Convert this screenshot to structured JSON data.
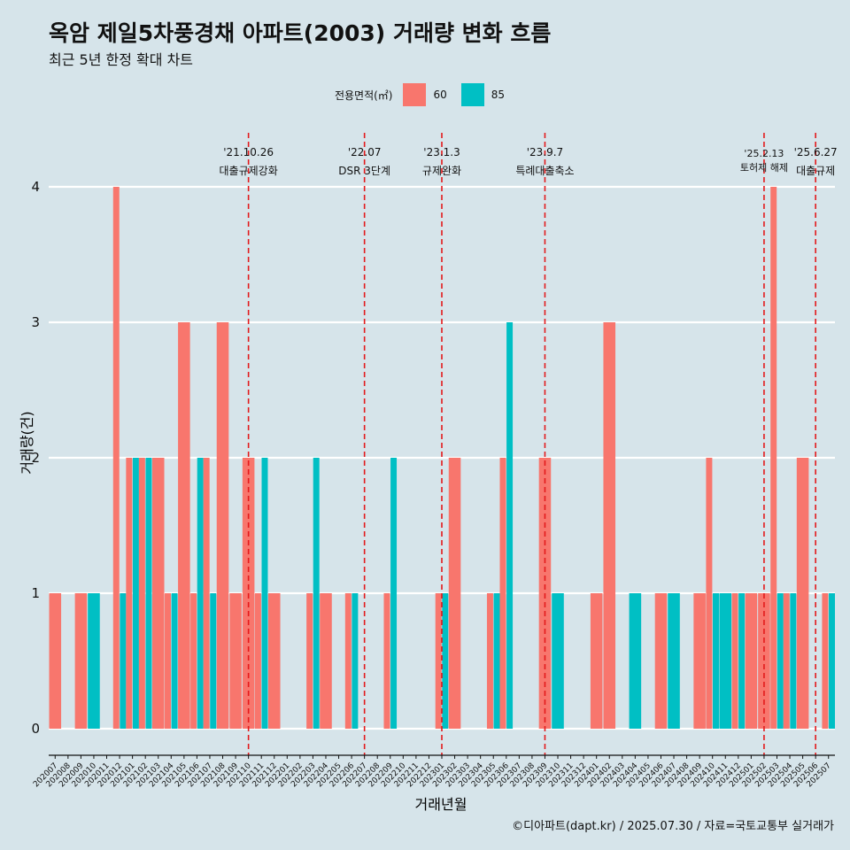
{
  "title": "옥암 제일5차풍경채 아파트(2003) 거래량 변화 흐름",
  "subtitle": "최근 5년 한정 확대 차트",
  "legend": {
    "title": "전용면적(㎡)"
  },
  "caption": "©디아파트(dapt.kr) / 2025.07.30 / 자료=국토교통부 실거래가",
  "colors": {
    "60": "#f8766d",
    "85": "#00bfc4",
    "background": "#d6e4ea",
    "vline": "#e31a1c"
  },
  "chart_data": {
    "type": "bar",
    "xlabel": "거래년월",
    "ylabel": "거래량(건)",
    "ylim": [
      0,
      4
    ],
    "yticks": [
      0,
      1,
      2,
      3,
      4
    ],
    "grid": true,
    "legend_position": "top",
    "categories": [
      "202007",
      "202008",
      "202009",
      "202010",
      "202011",
      "202012",
      "202101",
      "202102",
      "202103",
      "202104",
      "202105",
      "202106",
      "202107",
      "202108",
      "202109",
      "202110",
      "202111",
      "202112",
      "202201",
      "202202",
      "202203",
      "202204",
      "202205",
      "202206",
      "202207",
      "202208",
      "202209",
      "202210",
      "202211",
      "202212",
      "202301",
      "202302",
      "202303",
      "202304",
      "202305",
      "202306",
      "202307",
      "202308",
      "202309",
      "202310",
      "202311",
      "202312",
      "202401",
      "202402",
      "202403",
      "202404",
      "202405",
      "202406",
      "202407",
      "202408",
      "202409",
      "202410",
      "202411",
      "202412",
      "202501",
      "202502",
      "202503",
      "202504",
      "202505",
      "202506",
      "202507"
    ],
    "series": [
      {
        "name": "60",
        "values": [
          1,
          0,
          1,
          0,
          0,
          4,
          2,
          2,
          2,
          1,
          3,
          1,
          2,
          3,
          1,
          2,
          1,
          1,
          0,
          0,
          1,
          1,
          0,
          1,
          0,
          0,
          1,
          0,
          0,
          0,
          1,
          2,
          0,
          0,
          1,
          2,
          0,
          0,
          2,
          0,
          0,
          0,
          1,
          3,
          0,
          0,
          0,
          1,
          0,
          0,
          1,
          2,
          0,
          1,
          1,
          1,
          4,
          1,
          2,
          0,
          1
        ]
      },
      {
        "name": "85",
        "values": [
          0,
          0,
          0,
          1,
          0,
          1,
          2,
          2,
          0,
          1,
          0,
          2,
          1,
          0,
          0,
          0,
          2,
          0,
          0,
          0,
          2,
          0,
          0,
          1,
          0,
          0,
          2,
          0,
          0,
          0,
          1,
          0,
          0,
          0,
          1,
          3,
          0,
          0,
          0,
          1,
          0,
          0,
          0,
          0,
          0,
          1,
          0,
          0,
          1,
          0,
          0,
          1,
          1,
          1,
          0,
          0,
          1,
          1,
          0,
          0,
          1
        ]
      }
    ],
    "annotations": [
      {
        "date_label": "'21.10.26",
        "text": "대출규제강화",
        "x": "202110"
      },
      {
        "date_label": "'22.07",
        "text": "DSR 3단계",
        "x": "202207"
      },
      {
        "date_label": "'23.1.3",
        "text": "규제완화",
        "x": "202301"
      },
      {
        "date_label": "'23.9.7",
        "text": "특례대출축소",
        "x": "202309"
      },
      {
        "date_label": "'25.2.13",
        "text": "토허제 해제",
        "x": "202502"
      },
      {
        "date_label": "'25.6.27",
        "text": "대출규제",
        "x": "202506"
      }
    ]
  }
}
